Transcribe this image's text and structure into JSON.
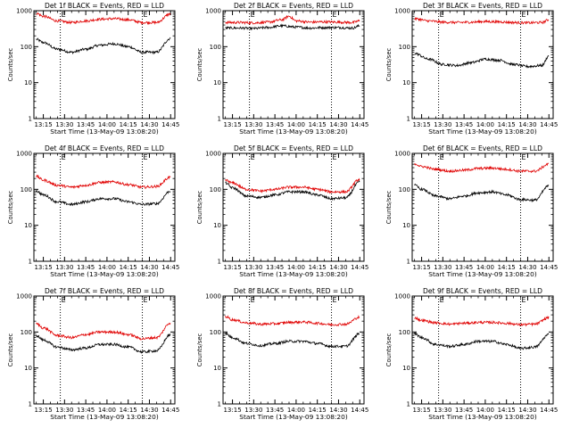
{
  "window": {
    "background": "#ffffff"
  },
  "colors": {
    "events": "#000000",
    "lld": "#e00000",
    "frame": "#000000"
  },
  "chart_data": [
    {
      "type": "line",
      "title": "Det 1f BLACK = Events, RED = LLD",
      "xlabel": "Start Time (13-May-09 13:08:20)",
      "ylabel": "Counts/sec",
      "yscale": "log",
      "ylim": [
        1,
        1000
      ],
      "xlim": [
        "13:08:20",
        "14:48:00"
      ],
      "xticks": [
        "13:15",
        "13:30",
        "13:45",
        "14:00",
        "14:15",
        "14:30",
        "14:45"
      ],
      "yticks": [
        "1",
        "10",
        "100",
        "1000"
      ],
      "markers": [
        {
          "time": "13:27",
          "label": "E"
        },
        {
          "time": "14:25",
          "label": "E"
        }
      ],
      "series": [
        {
          "name": "Events",
          "color": "#000000",
          "x": [
            "13:10",
            "13:15",
            "13:25",
            "13:35",
            "13:45",
            "13:55",
            "14:05",
            "14:15",
            "14:25",
            "14:35",
            "14:45"
          ],
          "y": [
            160,
            130,
            85,
            70,
            85,
            110,
            120,
            100,
            70,
            70,
            170
          ]
        },
        {
          "name": "LLD",
          "color": "#e00000",
          "x": [
            "13:10",
            "13:15",
            "13:25",
            "13:35",
            "13:45",
            "13:55",
            "14:05",
            "14:15",
            "14:25",
            "14:35",
            "14:45"
          ],
          "y": [
            850,
            700,
            520,
            470,
            520,
            580,
            600,
            560,
            470,
            470,
            820
          ]
        }
      ]
    },
    {
      "type": "line",
      "title": "Det 2f BLACK = Events, RED = LLD",
      "xlabel": "Start Time (13-May-09 13:08:20)",
      "ylabel": "Counts/sec",
      "yscale": "log",
      "ylim": [
        1,
        1000
      ],
      "xlim": [
        "13:08:20",
        "14:48:00"
      ],
      "xticks": [
        "13:15",
        "13:30",
        "13:45",
        "14:00",
        "14:15",
        "14:30",
        "14:45"
      ],
      "yticks": [
        "1",
        "10",
        "100",
        "1000"
      ],
      "markers": [
        {
          "time": "13:27",
          "label": "E"
        },
        {
          "time": "14:25",
          "label": "E"
        }
      ],
      "series": [
        {
          "name": "Events",
          "color": "#000000",
          "x": [
            "13:10",
            "13:20",
            "13:30",
            "13:40",
            "13:50",
            "14:00",
            "14:10",
            "14:20",
            "14:30",
            "14:40",
            "14:45"
          ],
          "y": [
            330,
            330,
            320,
            340,
            380,
            350,
            330,
            340,
            340,
            330,
            380
          ]
        },
        {
          "name": "LLD",
          "color": "#e00000",
          "x": [
            "13:10",
            "13:20",
            "13:30",
            "13:40",
            "13:50",
            "13:55",
            "14:00",
            "14:10",
            "14:20",
            "14:30",
            "14:40",
            "14:45"
          ],
          "y": [
            470,
            470,
            460,
            480,
            560,
            700,
            520,
            480,
            490,
            480,
            470,
            520
          ]
        }
      ]
    },
    {
      "type": "line",
      "title": "Det 3f BLACK = Events, RED = LLD",
      "xlabel": "Start Time (13-May-09 13:08:20)",
      "ylabel": "Counts/sec",
      "yscale": "log",
      "ylim": [
        1,
        1000
      ],
      "xlim": [
        "13:08:20",
        "14:48:00"
      ],
      "xticks": [
        "13:15",
        "13:30",
        "13:45",
        "14:00",
        "14:15",
        "14:30",
        "14:45"
      ],
      "yticks": [
        "1",
        "10",
        "100",
        "1000"
      ],
      "markers": [
        {
          "time": "13:27",
          "label": "E"
        },
        {
          "time": "14:25",
          "label": "E"
        }
      ],
      "series": [
        {
          "name": "Events",
          "color": "#000000",
          "x": [
            "13:10",
            "13:20",
            "13:30",
            "13:40",
            "13:50",
            "14:00",
            "14:10",
            "14:20",
            "14:30",
            "14:40",
            "14:45"
          ],
          "y": [
            65,
            45,
            32,
            30,
            36,
            45,
            42,
            32,
            28,
            30,
            55
          ]
        },
        {
          "name": "LLD",
          "color": "#e00000",
          "x": [
            "13:10",
            "13:20",
            "13:30",
            "13:40",
            "13:50",
            "14:00",
            "14:10",
            "14:20",
            "14:30",
            "14:40",
            "14:45"
          ],
          "y": [
            600,
            520,
            480,
            470,
            480,
            500,
            490,
            470,
            460,
            470,
            560
          ]
        }
      ]
    },
    {
      "type": "line",
      "title": "Det 4f BLACK = Events, RED = LLD",
      "xlabel": "Start Time (13-May-09 13:08:20)",
      "ylabel": "Counts/sec",
      "yscale": "log",
      "ylim": [
        1,
        1000
      ],
      "xlim": [
        "13:08:20",
        "14:48:00"
      ],
      "xticks": [
        "13:15",
        "13:30",
        "13:45",
        "14:00",
        "14:15",
        "14:30",
        "14:45"
      ],
      "yticks": [
        "1",
        "10",
        "100",
        "1000"
      ],
      "markers": [
        {
          "time": "13:27",
          "label": "E"
        },
        {
          "time": "14:25",
          "label": "E"
        }
      ],
      "series": [
        {
          "name": "Events",
          "color": "#000000",
          "x": [
            "13:10",
            "13:15",
            "13:25",
            "13:35",
            "13:45",
            "13:55",
            "14:05",
            "14:15",
            "14:25",
            "14:35",
            "14:45"
          ],
          "y": [
            90,
            70,
            45,
            38,
            45,
            55,
            55,
            45,
            38,
            40,
            90
          ]
        },
        {
          "name": "LLD",
          "color": "#e00000",
          "x": [
            "13:10",
            "13:15",
            "13:25",
            "13:35",
            "13:45",
            "13:55",
            "14:05",
            "14:15",
            "14:25",
            "14:35",
            "14:45"
          ],
          "y": [
            230,
            180,
            130,
            115,
            130,
            155,
            160,
            135,
            115,
            120,
            220
          ]
        }
      ]
    },
    {
      "type": "line",
      "title": "Det 5f BLACK = Events, RED = LLD",
      "xlabel": "Start Time (13-May-09 13:08:20)",
      "ylabel": "Counts/sec",
      "yscale": "log",
      "ylim": [
        1,
        1000
      ],
      "xlim": [
        "13:08:20",
        "14:48:00"
      ],
      "xticks": [
        "13:15",
        "13:30",
        "13:45",
        "14:00",
        "14:15",
        "14:30",
        "14:45"
      ],
      "yticks": [
        "1",
        "10",
        "100",
        "1000"
      ],
      "markers": [
        {
          "time": "13:27",
          "label": "E"
        },
        {
          "time": "14:25",
          "label": "E"
        }
      ],
      "series": [
        {
          "name": "Events",
          "color": "#000000",
          "x": [
            "13:10",
            "13:15",
            "13:25",
            "13:35",
            "13:45",
            "13:55",
            "14:05",
            "14:15",
            "14:25",
            "14:35",
            "14:45"
          ],
          "y": [
            150,
            110,
            65,
            60,
            70,
            85,
            85,
            70,
            55,
            58,
            160
          ]
        },
        {
          "name": "LLD",
          "color": "#e00000",
          "x": [
            "13:10",
            "13:15",
            "13:25",
            "13:35",
            "13:45",
            "13:55",
            "14:05",
            "14:15",
            "14:25",
            "14:35",
            "14:45"
          ],
          "y": [
            180,
            150,
            100,
            90,
            100,
            115,
            115,
            100,
            85,
            85,
            190
          ]
        }
      ]
    },
    {
      "type": "line",
      "title": "Det 6f BLACK = Events, RED = LLD",
      "xlabel": "Start Time (13-May-09 13:08:20)",
      "ylabel": "Counts/sec",
      "yscale": "log",
      "ylim": [
        1,
        1000
      ],
      "xlim": [
        "13:08:20",
        "14:48:00"
      ],
      "xticks": [
        "13:15",
        "13:30",
        "13:45",
        "14:00",
        "14:15",
        "14:30",
        "14:45"
      ],
      "yticks": [
        "1",
        "10",
        "100",
        "1000"
      ],
      "markers": [
        {
          "time": "13:27",
          "label": "E"
        },
        {
          "time": "14:25",
          "label": "E"
        }
      ],
      "series": [
        {
          "name": "Events",
          "color": "#000000",
          "x": [
            "13:10",
            "13:15",
            "13:25",
            "13:35",
            "13:45",
            "13:55",
            "14:05",
            "14:15",
            "14:25",
            "14:35",
            "14:45"
          ],
          "y": [
            130,
            100,
            65,
            55,
            65,
            80,
            85,
            70,
            52,
            50,
            125
          ]
        },
        {
          "name": "LLD",
          "color": "#e00000",
          "x": [
            "13:10",
            "13:15",
            "13:25",
            "13:35",
            "13:45",
            "13:55",
            "14:05",
            "14:15",
            "14:25",
            "14:35",
            "14:45"
          ],
          "y": [
            520,
            430,
            360,
            320,
            340,
            380,
            390,
            360,
            320,
            320,
            500
          ]
        }
      ]
    },
    {
      "type": "line",
      "title": "Det 7f BLACK = Events, RED = LLD",
      "xlabel": "Start Time (13-May-09 13:08:20)",
      "ylabel": "Counts/sec",
      "yscale": "log",
      "ylim": [
        1,
        1000
      ],
      "xlim": [
        "13:08:20",
        "14:48:00"
      ],
      "xticks": [
        "13:15",
        "13:30",
        "13:45",
        "14:00",
        "14:15",
        "14:30",
        "14:45"
      ],
      "yticks": [
        "1",
        "10",
        "100",
        "1000"
      ],
      "markers": [
        {
          "time": "13:27",
          "label": "E"
        },
        {
          "time": "14:25",
          "label": "E"
        }
      ],
      "series": [
        {
          "name": "Events",
          "color": "#000000",
          "x": [
            "13:10",
            "13:15",
            "13:25",
            "13:35",
            "13:45",
            "13:55",
            "14:05",
            "14:15",
            "14:25",
            "14:35",
            "14:45"
          ],
          "y": [
            80,
            60,
            38,
            32,
            36,
            45,
            45,
            38,
            28,
            30,
            85
          ]
        },
        {
          "name": "LLD",
          "color": "#e00000",
          "x": [
            "13:10",
            "13:15",
            "13:25",
            "13:35",
            "13:45",
            "13:55",
            "14:05",
            "14:15",
            "14:25",
            "14:35",
            "14:45"
          ],
          "y": [
            170,
            130,
            80,
            70,
            85,
            100,
            100,
            85,
            65,
            70,
            180
          ]
        }
      ]
    },
    {
      "type": "line",
      "title": "Det 8f BLACK = Events, RED = LLD",
      "xlabel": "Start Time (13-May-09 13:08:20)",
      "ylabel": "Counts/sec",
      "yscale": "log",
      "ylim": [
        1,
        1000
      ],
      "xlim": [
        "13:08:20",
        "14:48:00"
      ],
      "xticks": [
        "13:15",
        "13:30",
        "13:45",
        "14:00",
        "14:15",
        "14:30",
        "14:45"
      ],
      "yticks": [
        "1",
        "10",
        "100",
        "1000"
      ],
      "markers": [
        {
          "time": "13:27",
          "label": "E"
        },
        {
          "time": "14:25",
          "label": "E"
        }
      ],
      "series": [
        {
          "name": "Events",
          "color": "#000000",
          "x": [
            "13:10",
            "13:15",
            "13:25",
            "13:35",
            "13:45",
            "13:55",
            "14:05",
            "14:15",
            "14:25",
            "14:35",
            "14:45"
          ],
          "y": [
            90,
            70,
            48,
            42,
            48,
            55,
            55,
            48,
            40,
            40,
            90
          ]
        },
        {
          "name": "LLD",
          "color": "#e00000",
          "x": [
            "13:10",
            "13:15",
            "13:25",
            "13:35",
            "13:45",
            "13:55",
            "14:05",
            "14:15",
            "14:25",
            "14:35",
            "14:45"
          ],
          "y": [
            270,
            220,
            180,
            165,
            170,
            185,
            190,
            175,
            160,
            165,
            260
          ]
        }
      ]
    },
    {
      "type": "line",
      "title": "Det 9f BLACK = Events, RED = LLD",
      "xlabel": "Start Time (13-May-09 13:08:20)",
      "ylabel": "Counts/sec",
      "yscale": "log",
      "ylim": [
        1,
        1000
      ],
      "xlim": [
        "13:08:20",
        "14:48:00"
      ],
      "xticks": [
        "13:15",
        "13:30",
        "13:45",
        "14:00",
        "14:15",
        "14:30",
        "14:45"
      ],
      "yticks": [
        "1",
        "10",
        "100",
        "1000"
      ],
      "markers": [
        {
          "time": "13:27",
          "label": "E"
        },
        {
          "time": "14:25",
          "label": "E"
        }
      ],
      "series": [
        {
          "name": "Events",
          "color": "#000000",
          "x": [
            "13:10",
            "13:15",
            "13:25",
            "13:35",
            "13:45",
            "13:55",
            "14:05",
            "14:15",
            "14:25",
            "14:35",
            "14:45"
          ],
          "y": [
            90,
            70,
            45,
            40,
            45,
            55,
            55,
            45,
            35,
            38,
            85
          ]
        },
        {
          "name": "LLD",
          "color": "#e00000",
          "x": [
            "13:10",
            "13:15",
            "13:25",
            "13:35",
            "13:45",
            "13:55",
            "14:05",
            "14:15",
            "14:25",
            "14:35",
            "14:45"
          ],
          "y": [
            250,
            210,
            180,
            165,
            175,
            185,
            185,
            175,
            160,
            165,
            250
          ]
        }
      ]
    }
  ]
}
